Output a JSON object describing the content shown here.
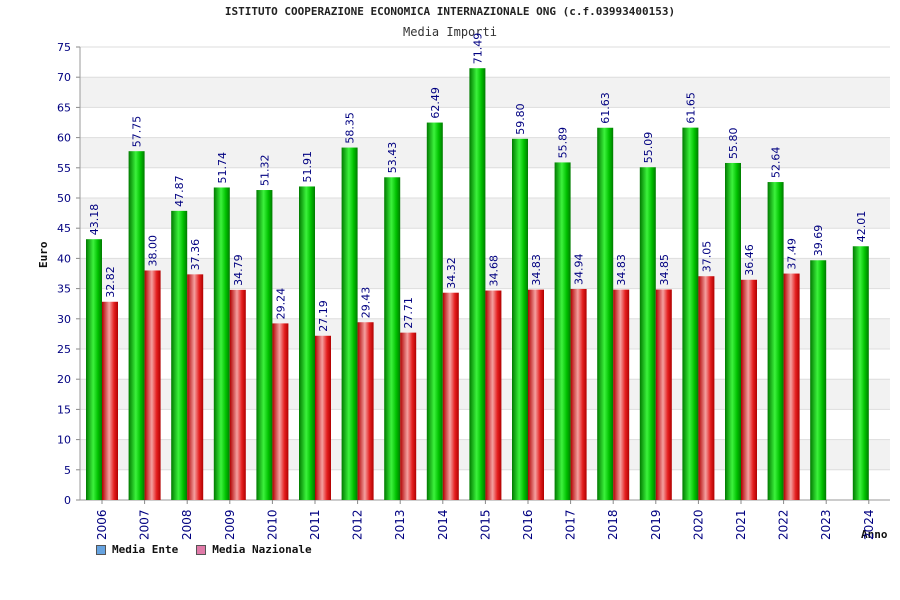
{
  "chart_data": {
    "type": "bar",
    "title": "ISTITUTO COOPERAZIONE ECONOMICA INTERNAZIONALE ONG (c.f.03993400153)",
    "subtitle": "Media Importi",
    "ylabel": "Euro",
    "xlabel": "Anno",
    "ylim": [
      0,
      75
    ],
    "yticks": [
      0,
      5,
      10,
      15,
      20,
      25,
      30,
      35,
      40,
      45,
      50,
      55,
      60,
      65,
      70,
      75
    ],
    "grid": true,
    "legend_position": "bottom-left",
    "categories": [
      "2006",
      "2007",
      "2008",
      "2009",
      "2010",
      "2011",
      "2012",
      "2013",
      "2014",
      "2015",
      "2016",
      "2017",
      "2018",
      "2019",
      "2020",
      "2021",
      "2022",
      "2023",
      "2024"
    ],
    "series": [
      {
        "name": "Media Ente",
        "color": "#00b000",
        "values": [
          43.18,
          57.75,
          47.87,
          51.74,
          51.32,
          51.91,
          58.35,
          53.43,
          62.49,
          71.49,
          59.8,
          55.89,
          61.63,
          55.09,
          61.65,
          55.8,
          52.64,
          39.69,
          42.01
        ],
        "labels": [
          "43.18",
          "57.75",
          "47.87",
          "51.74",
          "51.32",
          "51.91",
          "58.35",
          "53.43",
          "62.49",
          "71.49",
          "59.80",
          "55.89",
          "61.63",
          "55.09",
          "61.65",
          "55.80",
          "52.64",
          "39.69",
          "42.01"
        ]
      },
      {
        "name": "Media Nazionale",
        "color": "#e02020",
        "values": [
          32.82,
          38.0,
          37.36,
          34.79,
          29.24,
          27.19,
          29.43,
          27.71,
          34.32,
          34.68,
          34.83,
          34.94,
          34.83,
          34.85,
          37.05,
          36.46,
          37.49,
          null,
          null
        ],
        "labels": [
          "32.82",
          "38.00",
          "37.36",
          "34.79",
          "29.24",
          "27.19",
          "29.43",
          "27.71",
          "34.32",
          "34.68",
          "34.83",
          "34.94",
          "34.83",
          "34.85",
          "37.05",
          "36.46",
          "37.49",
          null,
          null
        ]
      }
    ],
    "legend": [
      {
        "label": "Media Ente",
        "color": "#66a3e0"
      },
      {
        "label": "Media Nazionale",
        "color": "#e07aa8"
      }
    ],
    "colors": {
      "tick_text": "#000080",
      "label_text": "#000080",
      "band_light": "#ffffff",
      "band_dark": "#f2f2f2",
      "grid": "#dddddd"
    }
  }
}
